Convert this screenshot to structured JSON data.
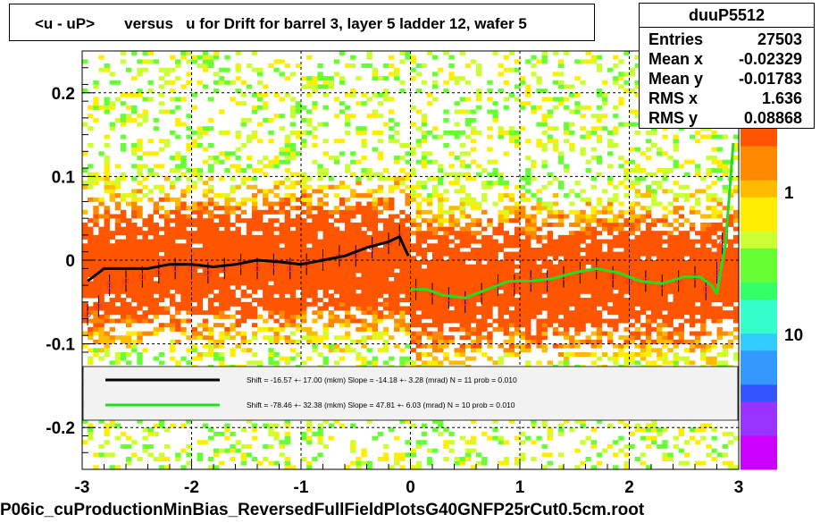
{
  "title": "<u - uP>       versus   u for Drift for barrel 3, layer 5 ladder 12, wafer 5",
  "stats": {
    "name": "duuP5512",
    "entries_label": "Entries",
    "entries": "27503",
    "meanx_label": "Mean x",
    "meanx": "-0.02329",
    "meany_label": "Mean y",
    "meany": "-0.01783",
    "rmsx_label": "RMS x",
    "rmsx": "1.636",
    "rmsy_label": "RMS y",
    "rmsy": "0.08868"
  },
  "footer": "P06ic_cuProductionMinBias_ReversedFullFieldPlotsG40GNFP25rCut0.5cm.root",
  "legend": {
    "fit1": "Shift =   -16.57 +- 17.00 (mkm) Slope =   -14.18 +- 3.28 (mrad)  N = 11 prob = 0.010",
    "fit2": "Shift =   -78.46 +- 32.38 (mkm) Slope =    47.81 +- 6.03 (mrad)  N = 10 prob = 0.010"
  },
  "palette_labels": [
    "1",
    "10"
  ],
  "colors": {
    "fit1": "#000000",
    "fit2": "#22dd22",
    "points": "#ff3333"
  },
  "chart_data": {
    "type": "heatmap",
    "title": "<u - uP>       versus   u for Drift for barrel 3, layer 5 ladder 12, wafer 5",
    "xlim": [
      -3,
      3
    ],
    "ylim": [
      -0.25,
      0.25
    ],
    "x_ticks": [
      "-3",
      "-2",
      "-1",
      "0",
      "1",
      "2",
      "3"
    ],
    "y_ticks": [
      "-0.2",
      "-0.1",
      "0",
      "0.1",
      "0.2"
    ],
    "grid": true,
    "profile_points": [
      {
        "x": -2.95,
        "y": -0.065
      },
      {
        "x": -2.85,
        "y": -0.055
      },
      {
        "x": -2.75,
        "y": -0.03
      },
      {
        "x": -2.6,
        "y": -0.025
      },
      {
        "x": -2.45,
        "y": -0.02
      },
      {
        "x": -2.3,
        "y": -0.015
      },
      {
        "x": -2.15,
        "y": -0.01
      },
      {
        "x": -2.0,
        "y": -0.01
      },
      {
        "x": -1.85,
        "y": -0.015
      },
      {
        "x": -1.7,
        "y": -0.01
      },
      {
        "x": -1.55,
        "y": -0.005
      },
      {
        "x": -1.4,
        "y": -0.01
      },
      {
        "x": -1.25,
        "y": -0.005
      },
      {
        "x": -1.1,
        "y": -0.01
      },
      {
        "x": -0.95,
        "y": -0.005
      },
      {
        "x": -0.8,
        "y": 0.0
      },
      {
        "x": -0.65,
        "y": 0.005
      },
      {
        "x": -0.5,
        "y": 0.005
      },
      {
        "x": -0.35,
        "y": 0.015
      },
      {
        "x": -0.2,
        "y": 0.02
      },
      {
        "x": -0.1,
        "y": 0.03
      },
      {
        "x": 0.05,
        "y": -0.035
      },
      {
        "x": 0.2,
        "y": -0.04
      },
      {
        "x": 0.35,
        "y": -0.045
      },
      {
        "x": 0.5,
        "y": -0.05
      },
      {
        "x": 0.65,
        "y": -0.04
      },
      {
        "x": 0.8,
        "y": -0.03
      },
      {
        "x": 0.95,
        "y": -0.03
      },
      {
        "x": 1.1,
        "y": -0.025
      },
      {
        "x": 1.25,
        "y": -0.025
      },
      {
        "x": 1.4,
        "y": -0.02
      },
      {
        "x": 1.55,
        "y": -0.015
      },
      {
        "x": 1.7,
        "y": -0.01
      },
      {
        "x": 1.85,
        "y": -0.02
      },
      {
        "x": 2.0,
        "y": -0.025
      },
      {
        "x": 2.15,
        "y": -0.025
      },
      {
        "x": 2.3,
        "y": -0.03
      },
      {
        "x": 2.45,
        "y": -0.025
      },
      {
        "x": 2.6,
        "y": -0.02
      },
      {
        "x": 2.7,
        "y": -0.035
      },
      {
        "x": 2.8,
        "y": -0.015
      },
      {
        "x": 2.85,
        "y": 0.02
      }
    ],
    "series": [
      {
        "fit": "fit1",
        "x": [
          -2.95,
          -2.8,
          -2.6,
          -2.4,
          -2.2,
          -2.0,
          -1.8,
          -1.6,
          -1.4,
          -1.2,
          -1.0,
          -0.8,
          -0.6,
          -0.4,
          -0.2,
          -0.1,
          -0.02
        ],
        "y": [
          -0.025,
          -0.01,
          -0.01,
          -0.01,
          -0.005,
          -0.005,
          -0.008,
          -0.005,
          0.0,
          -0.002,
          -0.005,
          0.0,
          0.005,
          0.015,
          0.022,
          0.028,
          0.005
        ]
      },
      {
        "fit": "fit2",
        "x": [
          0.0,
          0.15,
          0.3,
          0.5,
          0.7,
          0.9,
          1.1,
          1.3,
          1.5,
          1.7,
          1.9,
          2.1,
          2.3,
          2.5,
          2.65,
          2.75,
          2.8,
          2.88,
          2.95
        ],
        "y": [
          -0.035,
          -0.035,
          -0.042,
          -0.045,
          -0.035,
          -0.025,
          -0.025,
          -0.022,
          -0.015,
          -0.01,
          -0.015,
          -0.025,
          -0.028,
          -0.02,
          -0.02,
          -0.03,
          -0.04,
          0.02,
          0.14
        ]
      }
    ]
  }
}
